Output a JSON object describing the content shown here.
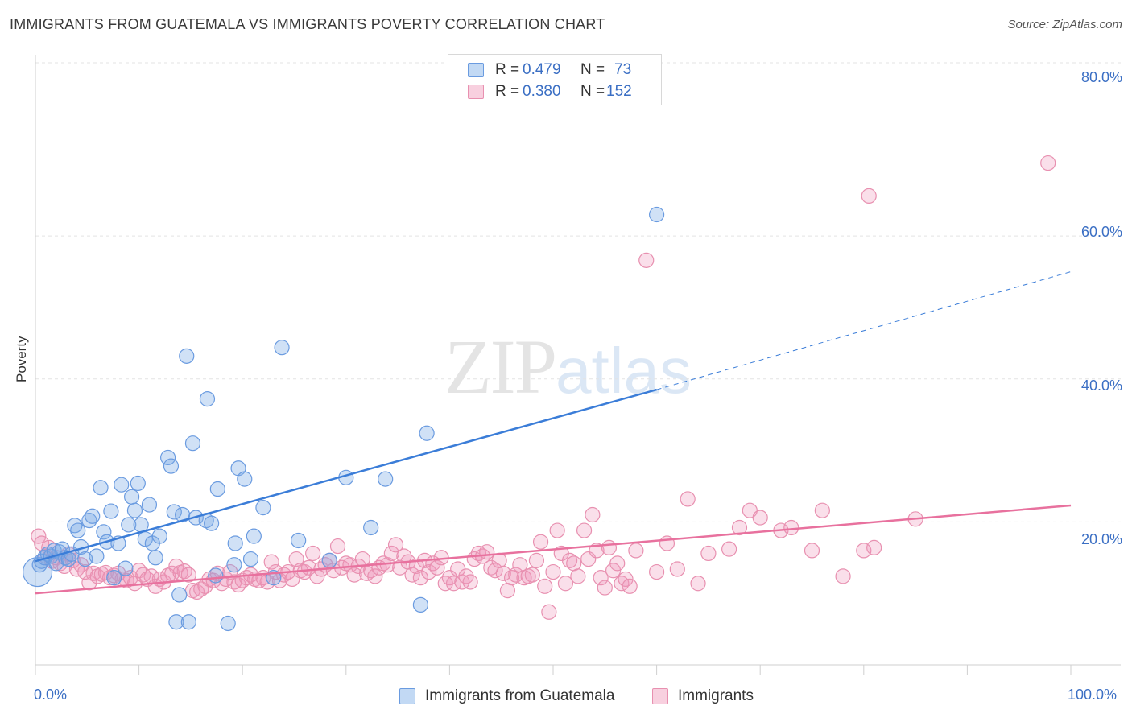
{
  "title": "IMMIGRANTS FROM GUATEMALA VS IMMIGRANTS POVERTY CORRELATION CHART",
  "source": "Source: ZipAtlas.com",
  "watermark": {
    "zip": "ZIP",
    "atlas": "atlas"
  },
  "colors": {
    "blue": "#3b7dd8",
    "blue_fill": "rgba(120,170,230,0.35)",
    "pink": "#e8719e",
    "pink_fill": "rgba(240,150,185,0.30)",
    "axis_text": "#3b6fc4",
    "grid": "#e3e3e3"
  },
  "legend_top": [
    {
      "r_label": "R =",
      "r_value": "0.479",
      "n_label": "N =",
      "n_value": "73"
    },
    {
      "r_label": "R =",
      "r_value": "0.380",
      "n_label": "N =",
      "n_value": "152"
    }
  ],
  "legend_bottom": [
    "Immigrants from Guatemala",
    "Immigrants"
  ],
  "chart_data": {
    "type": "scatter",
    "title": "IMMIGRANTS FROM GUATEMALA VS IMMIGRANTS POVERTY CORRELATION CHART",
    "xlabel": "",
    "ylabel": "Poverty",
    "xlim": [
      0,
      100
    ],
    "ylim": [
      0,
      84
    ],
    "x_tick_labels": [
      "0.0%",
      "100.0%"
    ],
    "y_ticks": [
      20,
      40,
      60,
      80
    ],
    "y_tick_labels": [
      "20.0%",
      "40.0%",
      "60.0%",
      "80.0%"
    ],
    "grid": true,
    "legend_placement": "top-center and bottom",
    "series": [
      {
        "name": "Immigrants from Guatemala",
        "R": 0.479,
        "N": 73,
        "trend": {
          "x0": 0,
          "y0": 14.5,
          "x1": 60,
          "y1": 38.5,
          "dashed_to_x": 100,
          "dashed_to_y": 55
        },
        "points": [
          [
            0.2,
            13
          ],
          [
            0.4,
            14
          ],
          [
            0.6,
            14.5
          ],
          [
            0.9,
            15
          ],
          [
            1.2,
            15.5
          ],
          [
            1.5,
            15.2
          ],
          [
            1.8,
            16
          ],
          [
            2.0,
            14.2
          ],
          [
            2.3,
            15.8
          ],
          [
            2.6,
            16.2
          ],
          [
            2.9,
            15
          ],
          [
            3.2,
            14.8
          ],
          [
            3.5,
            15.5
          ],
          [
            3.8,
            19.5
          ],
          [
            4.1,
            18.8
          ],
          [
            4.4,
            16.5
          ],
          [
            4.8,
            14.8
          ],
          [
            5.2,
            20.2
          ],
          [
            5.5,
            20.8
          ],
          [
            5.9,
            15.2
          ],
          [
            6.3,
            24.8
          ],
          [
            6.6,
            18.6
          ],
          [
            6.9,
            17.2
          ],
          [
            7.3,
            21.5
          ],
          [
            7.6,
            12.2
          ],
          [
            8.0,
            17
          ],
          [
            8.3,
            25.2
          ],
          [
            8.7,
            13.5
          ],
          [
            9.0,
            19.6
          ],
          [
            9.3,
            23.5
          ],
          [
            9.6,
            21.6
          ],
          [
            9.9,
            25.4
          ],
          [
            10.2,
            19.6
          ],
          [
            10.6,
            17.6
          ],
          [
            11.0,
            22.4
          ],
          [
            11.3,
            17
          ],
          [
            11.6,
            15
          ],
          [
            12.0,
            18
          ],
          [
            12.8,
            29
          ],
          [
            13.1,
            27.8
          ],
          [
            13.4,
            21.4
          ],
          [
            13.6,
            6
          ],
          [
            13.9,
            9.8
          ],
          [
            14.2,
            21
          ],
          [
            14.6,
            43.2
          ],
          [
            14.8,
            6
          ],
          [
            15.2,
            31
          ],
          [
            15.5,
            20.6
          ],
          [
            16.5,
            20.2
          ],
          [
            16.6,
            37.2
          ],
          [
            17.0,
            19.8
          ],
          [
            17.4,
            12.5
          ],
          [
            17.6,
            24.6
          ],
          [
            18.6,
            5.8
          ],
          [
            19.2,
            14
          ],
          [
            19.3,
            17
          ],
          [
            19.6,
            27.5
          ],
          [
            20.2,
            26
          ],
          [
            20.8,
            14.8
          ],
          [
            21.1,
            18
          ],
          [
            22.0,
            22
          ],
          [
            23.0,
            12.2
          ],
          [
            23.8,
            44.4
          ],
          [
            25.4,
            17.4
          ],
          [
            28.4,
            14.6
          ],
          [
            30.0,
            26.2
          ],
          [
            32.4,
            19.2
          ],
          [
            33.8,
            26
          ],
          [
            37.2,
            8.4
          ],
          [
            37.8,
            32.4
          ],
          [
            60.0,
            63
          ]
        ]
      },
      {
        "name": "Immigrants",
        "R": 0.38,
        "N": 152,
        "trend": {
          "x0": 0,
          "y0": 10,
          "x1": 100,
          "y1": 22.3
        },
        "points": [
          [
            0.3,
            18
          ],
          [
            0.6,
            17
          ],
          [
            1.0,
            15.2
          ],
          [
            1.3,
            16.4
          ],
          [
            1.6,
            14.5
          ],
          [
            2.0,
            15
          ],
          [
            2.4,
            14.2
          ],
          [
            2.8,
            13.8
          ],
          [
            3.2,
            15.5
          ],
          [
            3.6,
            14.6
          ],
          [
            4.0,
            13.4
          ],
          [
            4.4,
            14
          ],
          [
            4.8,
            13
          ],
          [
            5.2,
            11.5
          ],
          [
            5.6,
            12.8
          ],
          [
            6.0,
            12.4
          ],
          [
            6.4,
            12.7
          ],
          [
            6.8,
            12.9
          ],
          [
            7.2,
            12.2
          ],
          [
            7.6,
            12.5
          ],
          [
            8.0,
            12.8
          ],
          [
            8.4,
            12
          ],
          [
            8.8,
            11.8
          ],
          [
            9.2,
            12.2
          ],
          [
            9.6,
            11.4
          ],
          [
            10.0,
            13.2
          ],
          [
            10.4,
            12.6
          ],
          [
            10.8,
            12
          ],
          [
            11.2,
            12.4
          ],
          [
            11.6,
            11
          ],
          [
            12.0,
            12
          ],
          [
            12.4,
            11.6
          ],
          [
            12.8,
            12.5
          ],
          [
            13.2,
            12.8
          ],
          [
            13.6,
            13.8
          ],
          [
            14.0,
            12.9
          ],
          [
            14.4,
            13.1
          ],
          [
            14.8,
            12.6
          ],
          [
            15.2,
            10.4
          ],
          [
            15.6,
            10.2
          ],
          [
            16.0,
            10.6
          ],
          [
            16.4,
            11
          ],
          [
            16.8,
            12
          ],
          [
            17.2,
            11.8
          ],
          [
            17.6,
            12.8
          ],
          [
            18.0,
            11.4
          ],
          [
            18.4,
            12
          ],
          [
            18.8,
            13
          ],
          [
            19.2,
            11.6
          ],
          [
            19.6,
            11.2
          ],
          [
            20.0,
            11.8
          ],
          [
            20.4,
            12.2
          ],
          [
            20.8,
            12.6
          ],
          [
            21.2,
            12
          ],
          [
            21.6,
            11.8
          ],
          [
            22.0,
            12.2
          ],
          [
            22.4,
            11.6
          ],
          [
            22.8,
            14.4
          ],
          [
            23.2,
            13
          ],
          [
            23.6,
            11.8
          ],
          [
            24.0,
            12.6
          ],
          [
            24.4,
            13
          ],
          [
            24.8,
            12
          ],
          [
            25.2,
            14.8
          ],
          [
            25.6,
            13.2
          ],
          [
            26.0,
            13
          ],
          [
            26.4,
            13.6
          ],
          [
            26.8,
            15.6
          ],
          [
            27.2,
            12.4
          ],
          [
            27.6,
            13.4
          ],
          [
            28.0,
            14
          ],
          [
            28.4,
            14.6
          ],
          [
            28.8,
            13.2
          ],
          [
            29.2,
            16.6
          ],
          [
            29.6,
            13.6
          ],
          [
            30.0,
            14.2
          ],
          [
            30.4,
            14
          ],
          [
            30.8,
            12.6
          ],
          [
            31.2,
            13.8
          ],
          [
            31.6,
            14.8
          ],
          [
            32.0,
            12.8
          ],
          [
            32.4,
            13.2
          ],
          [
            32.8,
            12.4
          ],
          [
            33.2,
            13.6
          ],
          [
            33.6,
            14.2
          ],
          [
            34.0,
            14
          ],
          [
            34.4,
            15.6
          ],
          [
            34.8,
            16.8
          ],
          [
            35.2,
            13.6
          ],
          [
            35.6,
            15.2
          ],
          [
            36.0,
            14.4
          ],
          [
            36.4,
            12.6
          ],
          [
            36.8,
            13.8
          ],
          [
            37.2,
            12.2
          ],
          [
            37.6,
            14.6
          ],
          [
            38.0,
            13
          ],
          [
            38.4,
            14.2
          ],
          [
            38.8,
            13.6
          ],
          [
            39.2,
            15
          ],
          [
            39.6,
            11.4
          ],
          [
            40.0,
            12.2
          ],
          [
            40.4,
            11.4
          ],
          [
            40.8,
            13.4
          ],
          [
            41.2,
            11.6
          ],
          [
            41.6,
            12.4
          ],
          [
            42.0,
            11.6
          ],
          [
            42.4,
            14.8
          ],
          [
            42.8,
            15.6
          ],
          [
            43.2,
            15.2
          ],
          [
            43.6,
            15.8
          ],
          [
            44.0,
            13.6
          ],
          [
            44.4,
            13.2
          ],
          [
            44.8,
            14.6
          ],
          [
            45.2,
            12.8
          ],
          [
            45.6,
            10.4
          ],
          [
            46.0,
            12.2
          ],
          [
            46.4,
            12.6
          ],
          [
            46.8,
            14
          ],
          [
            47.2,
            12.2
          ],
          [
            47.6,
            12.4
          ],
          [
            48.0,
            12.6
          ],
          [
            48.4,
            14.6
          ],
          [
            48.8,
            17.2
          ],
          [
            49.2,
            11
          ],
          [
            49.6,
            7.4
          ],
          [
            50.0,
            13
          ],
          [
            50.4,
            18.8
          ],
          [
            50.8,
            15.6
          ],
          [
            51.2,
            11.4
          ],
          [
            51.6,
            14.6
          ],
          [
            52.0,
            14.2
          ],
          [
            52.4,
            12.4
          ],
          [
            53.0,
            18.8
          ],
          [
            53.4,
            14.8
          ],
          [
            53.8,
            21
          ],
          [
            54.2,
            16
          ],
          [
            54.6,
            12.2
          ],
          [
            55.0,
            10.8
          ],
          [
            55.4,
            16.4
          ],
          [
            55.8,
            13.2
          ],
          [
            56.2,
            14.2
          ],
          [
            56.6,
            11.4
          ],
          [
            57.0,
            12
          ],
          [
            57.4,
            11
          ],
          [
            58.0,
            16
          ],
          [
            59.0,
            56.6
          ],
          [
            60.0,
            13
          ],
          [
            61.0,
            17
          ],
          [
            62.0,
            13.4
          ],
          [
            63.0,
            23.2
          ],
          [
            64.0,
            11.4
          ],
          [
            65.0,
            15.6
          ],
          [
            67.0,
            16.2
          ],
          [
            68.0,
            19.2
          ],
          [
            69.0,
            21.6
          ],
          [
            70.0,
            20.6
          ],
          [
            72.0,
            18.8
          ],
          [
            73.0,
            19.2
          ],
          [
            75.0,
            16
          ],
          [
            76.0,
            21.6
          ],
          [
            78.0,
            12.4
          ],
          [
            80.0,
            16
          ],
          [
            81.0,
            16.4
          ],
          [
            85.0,
            20.4
          ],
          [
            80.5,
            65.6
          ],
          [
            97.8,
            70.2
          ]
        ]
      }
    ]
  }
}
